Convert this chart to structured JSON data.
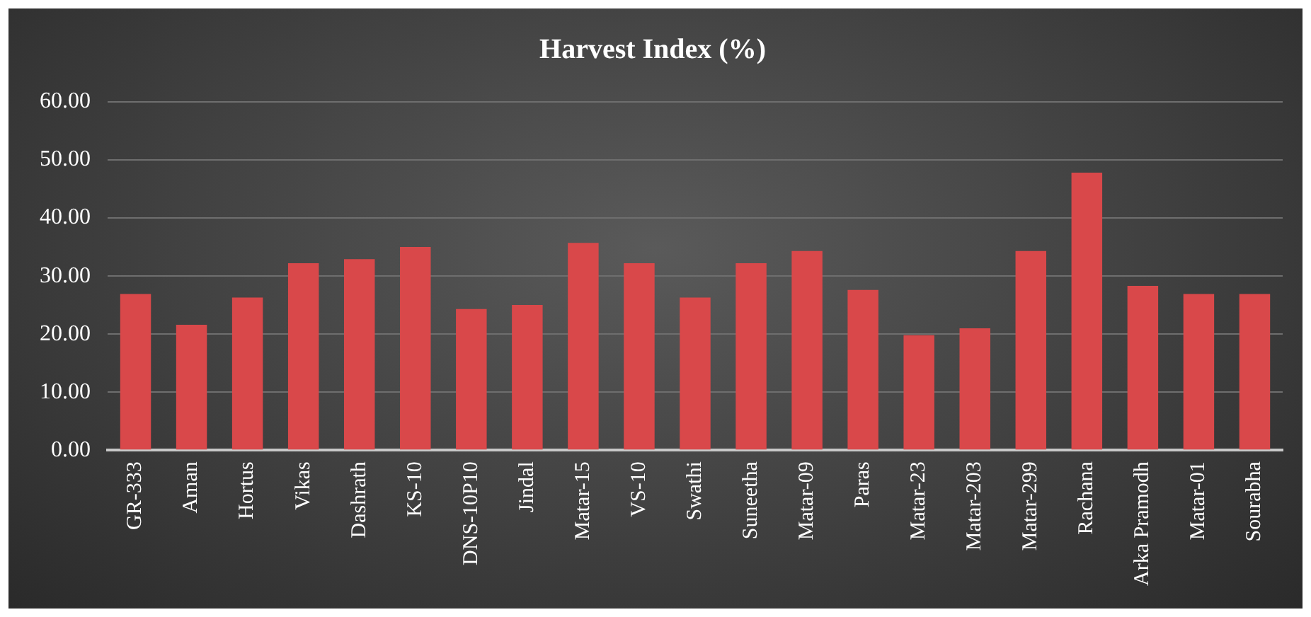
{
  "chart_data": {
    "type": "bar",
    "title": "Harvest Index (%)",
    "categories": [
      "GR-333",
      "Aman",
      "Hortus",
      "Vikas",
      "Dashrath",
      "KS-10",
      "DNS-10P10",
      "Jindal",
      "Matar-15",
      "VS-10",
      "Swathi",
      "Suneetha",
      "Matar-09",
      "Paras",
      "Matar-23",
      "Matar-203",
      "Matar-299",
      "Rachana",
      "Arka Pramodh",
      "Matar-01",
      "Sourabha"
    ],
    "values": [
      26.9,
      21.6,
      26.3,
      32.2,
      32.9,
      35.0,
      24.3,
      25.0,
      35.7,
      32.2,
      26.3,
      32.2,
      34.3,
      27.6,
      19.8,
      21.0,
      34.3,
      47.8,
      28.3,
      26.9,
      26.9
    ],
    "color": "#d9484a",
    "ylim": [
      0,
      60
    ],
    "yticks": [
      {
        "value": 0,
        "label": "0.00"
      },
      {
        "value": 10,
        "label": "10.00"
      },
      {
        "value": 20,
        "label": "20.00"
      },
      {
        "value": 30,
        "label": "30.00"
      },
      {
        "value": 40,
        "label": "40.00"
      },
      {
        "value": 50,
        "label": "50.00"
      },
      {
        "value": 60,
        "label": "60.00"
      }
    ],
    "grid": "y"
  }
}
